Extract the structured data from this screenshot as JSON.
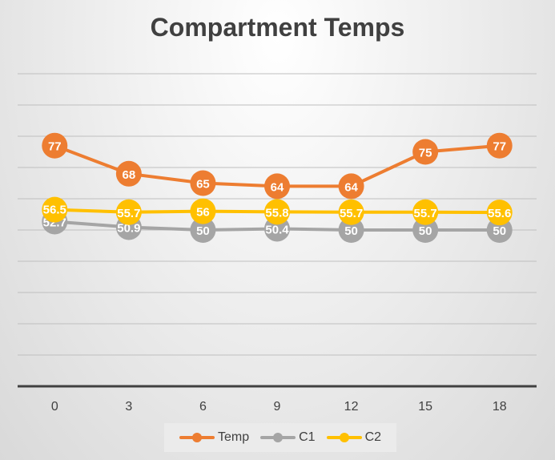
{
  "chart_data": {
    "type": "line",
    "title": "Compartment Temps",
    "x": [
      "0",
      "3",
      "6",
      "9",
      "12",
      "15",
      "18"
    ],
    "ylim": [
      0,
      100
    ],
    "grid": true,
    "legend_position": "bottom",
    "series": [
      {
        "name": "Temp",
        "color": "#ed7d31",
        "values": [
          77,
          68,
          65,
          64,
          64,
          75,
          77
        ],
        "labels": [
          "77",
          "68",
          "65",
          "64",
          "64",
          "75",
          "77"
        ]
      },
      {
        "name": "C1",
        "color": "#a5a5a5",
        "values": [
          52.7,
          50.9,
          50,
          50.4,
          50,
          50,
          50
        ],
        "labels": [
          "52.7",
          "50.9",
          "50",
          "50.4",
          "50",
          "50",
          "50"
        ]
      },
      {
        "name": "C2",
        "color": "#ffc000",
        "values": [
          56.5,
          55.7,
          56,
          55.8,
          55.7,
          55.7,
          55.6
        ],
        "labels": [
          "56.5",
          "55.7",
          "56",
          "55.8",
          "55.7",
          "55.7",
          "55.6"
        ]
      }
    ]
  }
}
